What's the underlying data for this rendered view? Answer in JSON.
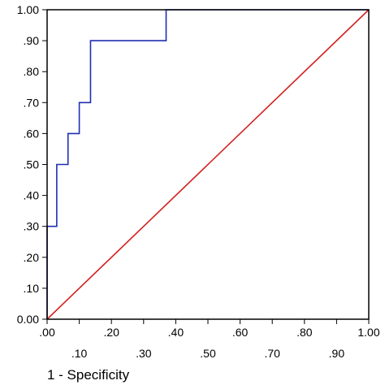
{
  "chart_data": {
    "type": "line",
    "title": "",
    "xlabel": "1 - Specificity",
    "ylabel": "",
    "xlim": [
      0,
      1
    ],
    "ylim": [
      0,
      1
    ],
    "grid": false,
    "x_ticks_upper": [
      ".00",
      ".20",
      ".40",
      ".60",
      ".80",
      "1.00"
    ],
    "x_ticks_lower": [
      ".10",
      ".30",
      ".50",
      ".70",
      ".90"
    ],
    "y_ticks": [
      "0.00",
      ".10",
      ".20",
      ".30",
      ".40",
      ".50",
      ".60",
      ".70",
      ".80",
      ".90",
      "1.00"
    ],
    "series": [
      {
        "color": "#1f2fb0",
        "x": [
          0.0,
          0.0,
          0.03,
          0.03,
          0.065,
          0.065,
          0.1,
          0.1,
          0.135,
          0.135,
          0.135,
          0.135,
          0.37,
          0.37,
          1.0
        ],
        "y": [
          0.0,
          0.3,
          0.3,
          0.5,
          0.5,
          0.6,
          0.6,
          0.7,
          0.7,
          0.7,
          0.9,
          0.9,
          0.9,
          1.0,
          1.0
        ]
      },
      {
        "color": "#d42020",
        "x": [
          0.0,
          1.0
        ],
        "y": [
          0.0,
          1.0
        ]
      }
    ]
  }
}
